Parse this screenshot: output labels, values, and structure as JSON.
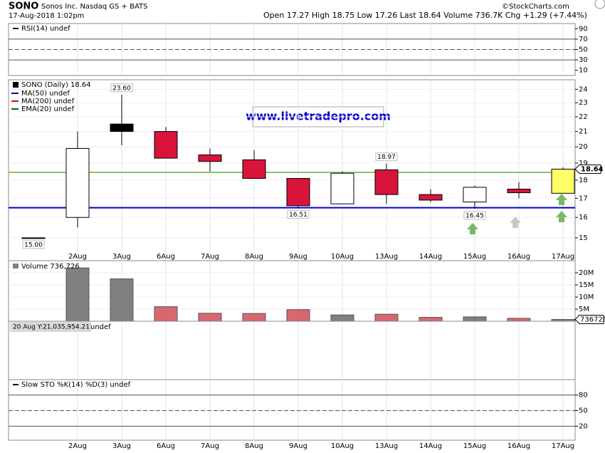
{
  "header": {
    "symbol": "SONO",
    "name": "Sonos Inc. Nasdaq GS + BATS",
    "date": "17-Aug-2018 1:02pm",
    "quote": "Open 17.27  High 18.75  Low 17.26  Last 18.64  Volume 736.7K  Chg +1.29 (+7.44%)",
    "copyright": "©StockCharts.com",
    "watermark": "www.livetradepro.com",
    "tooltip": "20 Aug Y:21,035,954.21",
    "tooltip_behind": "undef"
  },
  "chart_data": [
    {
      "type": "indicator",
      "title": "RSI(14) undef",
      "ylim": [
        0,
        100
      ],
      "yticks": [
        90,
        70,
        50,
        30,
        10
      ],
      "levels": [
        70,
        50,
        30
      ],
      "dashed_level": 50
    },
    {
      "type": "candlestick",
      "title": "SONO (Daily) 18.64",
      "legend": [
        {
          "name": "MA(50) undef",
          "color": "#00008b"
        },
        {
          "name": "MA(200) undef",
          "color": "#c8102e"
        },
        {
          "name": "EMA(20) undef",
          "color": "#006400"
        }
      ],
      "categories": [
        null,
        "2Aug",
        "3Aug",
        "6Aug",
        "7Aug",
        "8Aug",
        "9Aug",
        "10Aug",
        "13Aug",
        "14Aug",
        "15Aug",
        "16Aug",
        "17Aug"
      ],
      "open": [
        15.0,
        16.0,
        21.5,
        21.0,
        19.5,
        19.2,
        18.1,
        16.7,
        18.6,
        17.2,
        16.8,
        17.5,
        17.27
      ],
      "high": [
        15.0,
        21.0,
        23.6,
        21.3,
        19.9,
        19.8,
        18.1,
        18.5,
        18.97,
        17.5,
        17.7,
        17.9,
        18.75
      ],
      "low": [
        15.0,
        15.5,
        20.1,
        19.3,
        18.5,
        18.1,
        16.51,
        16.7,
        16.7,
        16.8,
        16.45,
        17.0,
        17.26
      ],
      "close": [
        15.0,
        19.9,
        21.0,
        19.3,
        19.1,
        18.1,
        16.6,
        18.4,
        17.2,
        16.9,
        17.6,
        17.3,
        18.64
      ],
      "fills": [
        "#000000",
        "#ffffff",
        "#000000",
        "#d8143a",
        "#d8143a",
        "#d8143a",
        "#d8143a",
        "#ffffff",
        "#d8143a",
        "#d8143a",
        "#ffffff",
        "#d8143a",
        "#ffff66"
      ],
      "high_labels": [
        null,
        null,
        "23.60",
        null,
        null,
        null,
        null,
        null,
        "18.97",
        null,
        null,
        null,
        null
      ],
      "low_labels": [
        "15.00",
        null,
        null,
        null,
        null,
        null,
        "16.51",
        null,
        null,
        null,
        "16.45",
        null,
        null
      ],
      "close_labels": [
        null,
        null,
        null,
        null,
        null,
        null,
        null,
        null,
        null,
        null,
        null,
        null,
        "18.64"
      ],
      "ylim": [
        14.4,
        24.4
      ],
      "yticks": [
        15,
        16,
        17,
        18,
        19,
        20,
        21,
        22,
        23,
        24
      ],
      "log_scale": true,
      "levels": [
        {
          "value": 18.45,
          "color": "#8cc26b"
        },
        {
          "value": 16.5,
          "color": "#0000cc"
        }
      ]
    },
    {
      "type": "bar",
      "title": "Volume 736,726",
      "ma_label": "undef",
      "values": [
        null,
        22000000,
        17500000,
        6000000,
        3300000,
        3200000,
        4800000,
        2600000,
        2900000,
        1600000,
        1800000,
        1200000,
        736726
      ],
      "colors": [
        null,
        "#808080",
        "#808080",
        "#d9676f",
        "#d9676f",
        "#d9676f",
        "#d9676f",
        "#808080",
        "#d9676f",
        "#d9676f",
        "#808080",
        "#d9676f",
        "#808080"
      ],
      "ylim": [
        0,
        24700000
      ],
      "yticks": [
        {
          "value": 5000000,
          "label": "5M"
        },
        {
          "value": 10000000,
          "label": "10M"
        },
        {
          "value": 15000000,
          "label": "15M"
        },
        {
          "value": 20000000,
          "label": "20M"
        }
      ]
    },
    {
      "type": "indicator",
      "title": "Slow STO %K(14) %D(3) undef",
      "ylim": [
        0,
        100
      ],
      "yticks": [
        80,
        50,
        20
      ],
      "levels": [
        80,
        50,
        20
      ],
      "dashed_level": 50
    }
  ]
}
